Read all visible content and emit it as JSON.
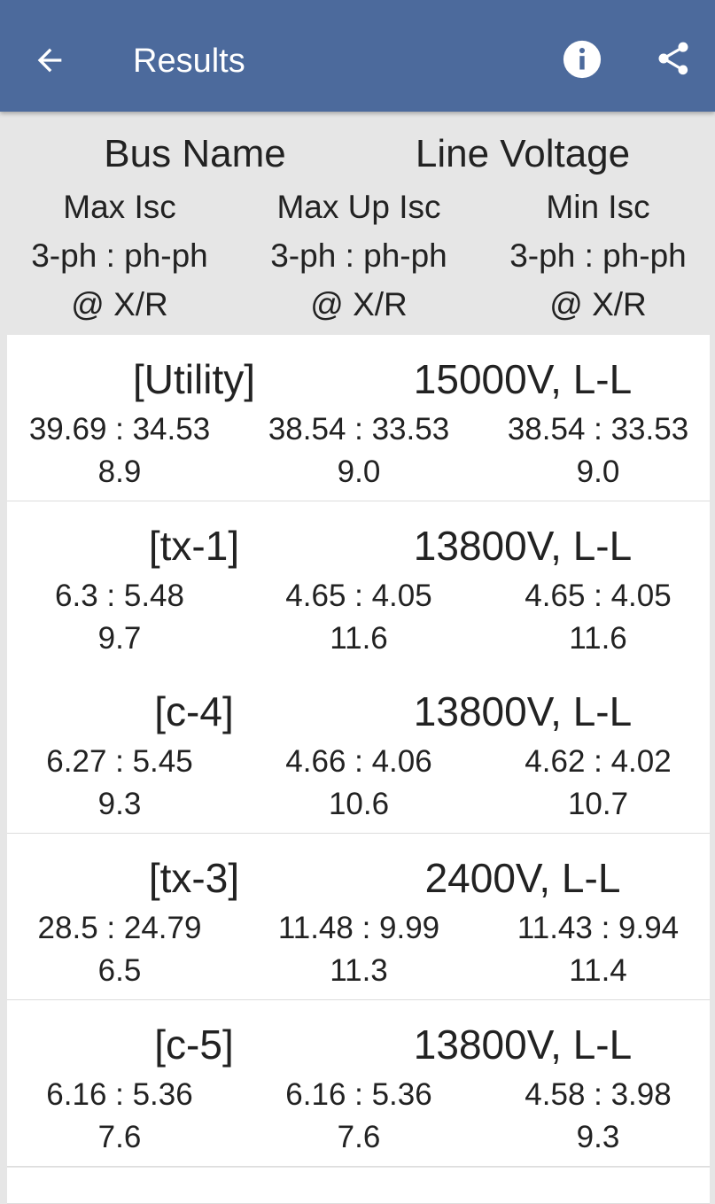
{
  "app_bar": {
    "title": "Results"
  },
  "header": {
    "bus_name": "Bus Name",
    "line_voltage": "Line Voltage",
    "columns": [
      {
        "title": "Max Isc",
        "phases": "3-ph : ph-ph",
        "ratio": "@ X/R"
      },
      {
        "title": "Max Up Isc",
        "phases": "3-ph : ph-ph",
        "ratio": "@ X/R"
      },
      {
        "title": "Min Isc",
        "phases": "3-ph : ph-ph",
        "ratio": "@ X/R"
      }
    ]
  },
  "rows": [
    {
      "name": "[Utility]",
      "voltage": "15000V, L-L",
      "cells": [
        {
          "isc": "39.69 : 34.53",
          "xr": "8.9"
        },
        {
          "isc": "38.54 : 33.53",
          "xr": "9.0"
        },
        {
          "isc": "38.54 : 33.53",
          "xr": "9.0"
        }
      ]
    },
    {
      "name": "[tx-1]",
      "voltage": "13800V, L-L",
      "cells": [
        {
          "isc": "6.3 : 5.48",
          "xr": "9.7"
        },
        {
          "isc": "4.65 : 4.05",
          "xr": "11.6"
        },
        {
          "isc": "4.65 : 4.05",
          "xr": "11.6"
        }
      ]
    },
    {
      "name": "[c-4]",
      "voltage": "13800V, L-L",
      "cells": [
        {
          "isc": "6.27 : 5.45",
          "xr": "9.3"
        },
        {
          "isc": "4.66 : 4.06",
          "xr": "10.6"
        },
        {
          "isc": "4.62 : 4.02",
          "xr": "10.7"
        }
      ]
    },
    {
      "name": "[tx-3]",
      "voltage": "2400V, L-L",
      "cells": [
        {
          "isc": "28.5 : 24.79",
          "xr": "6.5"
        },
        {
          "isc": "11.48 : 9.99",
          "xr": "11.3"
        },
        {
          "isc": "11.43 : 9.94",
          "xr": "11.4"
        }
      ]
    },
    {
      "name": "[c-5]",
      "voltage": "13800V, L-L",
      "cells": [
        {
          "isc": "6.16 : 5.36",
          "xr": "7.6"
        },
        {
          "isc": "6.16 : 5.36",
          "xr": "7.6"
        },
        {
          "isc": "4.58 : 3.98",
          "xr": "9.3"
        }
      ]
    }
  ]
}
